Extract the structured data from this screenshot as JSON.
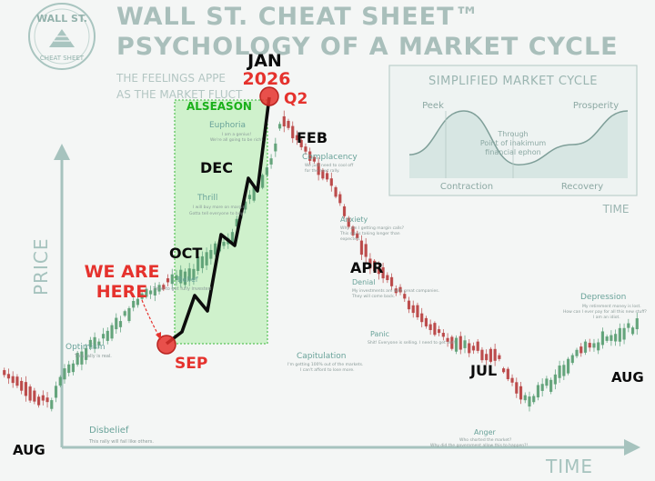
{
  "logo": {
    "top_text": "WALL ST.",
    "bottom_text": "CHEAT SHEET"
  },
  "title": {
    "line1": "WALL ST. CHEAT SHEET™",
    "line2": "PSYCHOLOGY OF A MARKET CYCLE"
  },
  "subtitle": {
    "line1": "THE FEELINGS APPE",
    "line2": "AS THE MARKET FLUCT"
  },
  "axes": {
    "y_label": "PRICE",
    "x_label": "TIME"
  },
  "callouts": {
    "we_are_here_1": "WE ARE",
    "we_are_here_2": "HERE",
    "sep": "SEP",
    "jan": "JAN",
    "year": "2026",
    "q2": "Q2",
    "alseason": "ALSEASON"
  },
  "months": {
    "aug_left": "AUG",
    "oct": "OCT",
    "dec": "DEC",
    "feb": "FEB",
    "apr": "APR",
    "jul": "JUL",
    "aug_right": "AUG"
  },
  "emotions": [
    {
      "name": "Disbelief",
      "note": "This rally will fail like others."
    },
    {
      "name": "Optimism",
      "note": "This rally is real."
    },
    {
      "name": "Belief",
      "note": "Time to get fully invested"
    },
    {
      "name": "Thrill",
      "note": "I will buy more on margin. Gotta tell everyone to buy!"
    },
    {
      "name": "Euphoria",
      "note": "I am a genius! We're all going to be rich!"
    },
    {
      "name": "Complacency",
      "note": "We just need to cool off for the next rally."
    },
    {
      "name": "Anxiety",
      "note": "Why am I getting margin calls? This dip is taking longer than expected."
    },
    {
      "name": "Denial",
      "note": "My investments are with great companies. They will come back."
    },
    {
      "name": "Panic",
      "note": "Shit! Everyone is selling. I need to get out!"
    },
    {
      "name": "Capitulation",
      "note": "I'm getting 100% out of the markets. I can't afford to lose more."
    },
    {
      "name": "Anger",
      "note": "Who shorted the market? Why did the government allow this to happen?!"
    },
    {
      "name": "Depression",
      "note": "My retirement money is lost. How can I ever pay for all this new stuff? I am an idiot."
    }
  ],
  "inset": {
    "title": "SIMPLIFIED MARKET CYCLE",
    "peak": "Peek",
    "prosperity": "Prosperity",
    "through_1": "Through",
    "through_2": "Point of inakimum",
    "through_3": "financial ephon",
    "contraction": "Contraction",
    "recovery": "Recovery",
    "time": "TIME"
  },
  "colors": {
    "accent_red": "#e5322d",
    "alseason_green": "#19b019",
    "candle_up": "#5b9e73",
    "candle_down": "#b84040",
    "axis": "#a6c3be"
  },
  "chart_data": {
    "type": "line",
    "title": "PSYCHOLOGY OF A MARKET CYCLE",
    "xlabel": "TIME",
    "ylabel": "PRICE",
    "market_cycle": {
      "x": [
        0,
        0.04,
        0.08,
        0.1,
        0.14,
        0.18,
        0.22,
        0.26,
        0.3,
        0.33,
        0.36,
        0.38,
        0.42,
        0.44,
        0.48,
        0.52,
        0.55,
        0.58,
        0.62,
        0.66,
        0.7,
        0.74,
        0.78,
        0.82,
        0.86,
        0.9,
        0.94,
        1
      ],
      "y": [
        22,
        15,
        12,
        20,
        28,
        34,
        42,
        47,
        50,
        55,
        60,
        68,
        80,
        95,
        85,
        75,
        62,
        52,
        45,
        36,
        30,
        28,
        24,
        12,
        18,
        26,
        30,
        35
      ]
    },
    "highlight_path": {
      "x": [
        0,
        0.25,
        0.5,
        0.7,
        1
      ],
      "y": [
        0,
        0.3,
        0.6,
        0.9,
        1
      ]
    },
    "inset_cycle": {
      "x": [
        0,
        0.25,
        0.5,
        0.75,
        1
      ],
      "y": [
        0.35,
        1,
        0.2,
        0.5,
        1
      ]
    }
  }
}
